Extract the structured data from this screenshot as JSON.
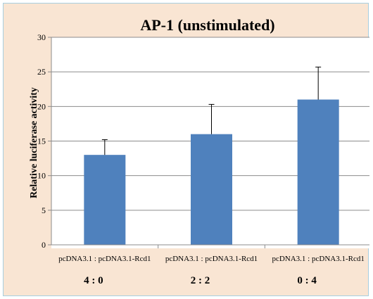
{
  "chart_data": {
    "type": "bar",
    "title": "AP-1 (unstimulated)",
    "xlabel": "",
    "ylabel": "Relative luciferase activity",
    "ylim": [
      0,
      30
    ],
    "yticks": [
      0,
      5,
      10,
      15,
      20,
      25,
      30
    ],
    "grid": true,
    "legend": "none",
    "bar_color": "#4f81bd",
    "categories": [
      "pcDNA3.1 : pcDNA3.1-Rcd1",
      "pcDNA3.1 : pcDNA3.1-Rcd1",
      "pcDNA3.1 : pcDNA3.1-Rcd1"
    ],
    "category_ratios": [
      "4 : 0",
      "2 : 2",
      "0 : 4"
    ],
    "values": [
      13,
      16,
      21
    ],
    "error_upper": [
      2.2,
      4.3,
      4.7
    ]
  }
}
